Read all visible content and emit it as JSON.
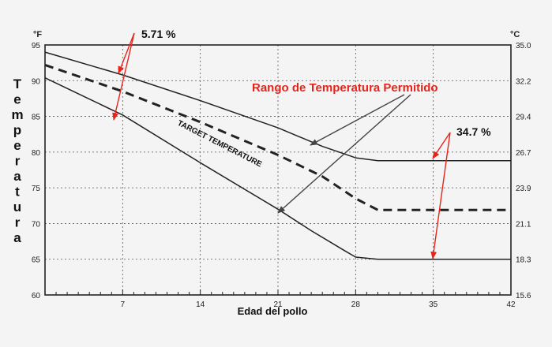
{
  "chart_data": {
    "type": "line",
    "x_unit_axis": "",
    "xlabel": "Edad del pollo",
    "ylabel": "Temperatura",
    "y_left_unit": "°F",
    "y_right_unit": "°C",
    "xlim": [
      0,
      42
    ],
    "ylim": [
      60,
      95
    ],
    "x_ticks": [
      "7",
      "14",
      "21",
      "28",
      "35",
      "42"
    ],
    "y_left_ticks": [
      "60",
      "65",
      "70",
      "75",
      "80",
      "85",
      "90",
      "95"
    ],
    "y_right_ticks": [
      "15.6",
      "18.3",
      "21.1",
      "23.9",
      "26.7",
      "29.4",
      "32.2",
      "35.0"
    ],
    "grid": true,
    "series": [
      {
        "style": "solid",
        "x": [
          0,
          7,
          14,
          21,
          25,
          28,
          30,
          35,
          42
        ],
        "y": [
          94,
          90.8,
          87.2,
          83.4,
          80.8,
          79.2,
          78.8,
          78.8,
          78.8
        ]
      },
      {
        "name": "TARGET TEMPERATURE",
        "style": "dashed",
        "x": [
          0,
          7,
          14,
          21,
          25,
          28,
          30,
          35,
          42
        ],
        "y": [
          92.2,
          88.5,
          84.2,
          79.6,
          76.6,
          73.5,
          71.9,
          71.9,
          71.9
        ]
      },
      {
        "style": "solid",
        "x": [
          0,
          7,
          14,
          21,
          24,
          27,
          28,
          30,
          35,
          42
        ],
        "y": [
          90.4,
          85.2,
          78.5,
          72,
          69,
          66.2,
          65.3,
          65,
          65,
          65
        ]
      }
    ],
    "annotations": {
      "range_label": "Rango de Temperatura Permitido",
      "pct_left": "5.71 %",
      "pct_right": "34.7 %",
      "target_label": "TARGET TEMPERATURE"
    }
  },
  "colors": {
    "annotation": "#e8231a",
    "line": "#222222",
    "grid": "#555555"
  }
}
